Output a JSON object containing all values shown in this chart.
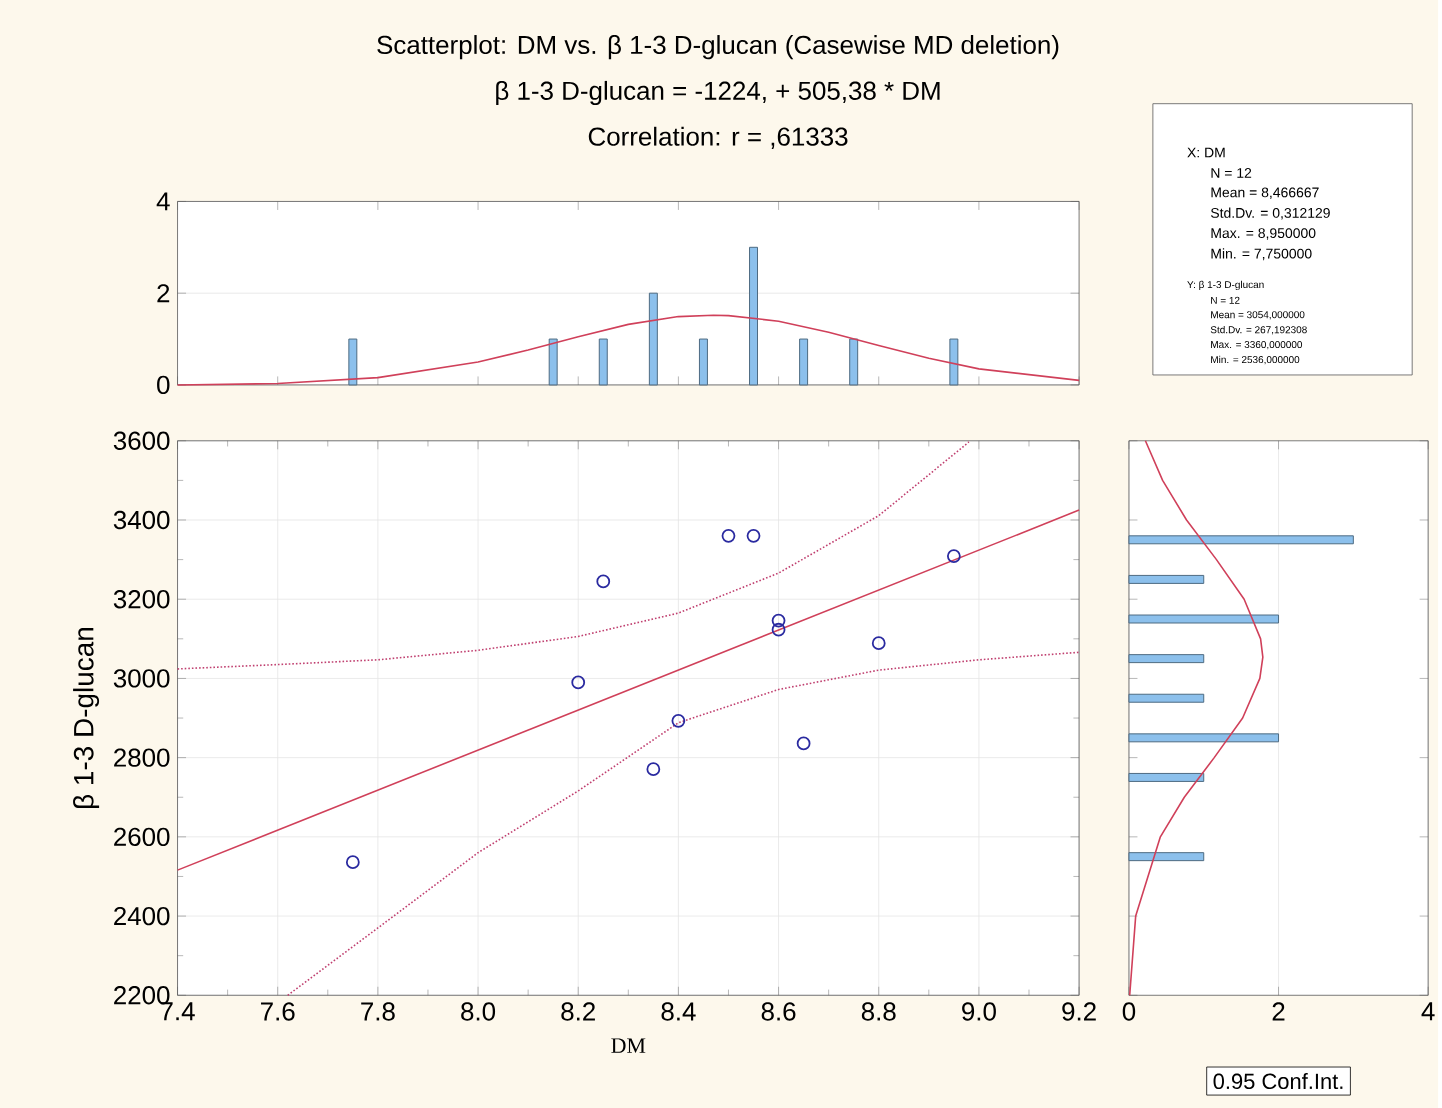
{
  "chart_data": [
    {
      "type": "bar",
      "title": "Scatterplot: DM vs. β 1-3 D-glucan (Casewise MD deletion)",
      "subtitle": "β 1-3 D-glucan = -1224, + 505,38 * DM",
      "annotations": [
        "Correlation: r = ,61333"
      ],
      "x": [
        7.75,
        8.15,
        8.25,
        8.35,
        8.45,
        8.55,
        8.65,
        8.75,
        8.95
      ],
      "series": [
        {
          "type": "bar",
          "color": "#8cc0ec",
          "values": [
            1,
            1,
            1,
            2,
            1,
            3,
            1,
            1,
            1
          ]
        },
        {
          "type": "line",
          "color": "#d0405a",
          "x": [
            7.4,
            7.6,
            7.8,
            8.0,
            8.1,
            8.2,
            8.3,
            8.4,
            8.47,
            8.5,
            8.6,
            8.7,
            8.8,
            8.9,
            9.0,
            9.2
          ],
          "values": [
            0.0,
            0.03,
            0.16,
            0.5,
            0.76,
            1.05,
            1.32,
            1.49,
            1.52,
            1.51,
            1.39,
            1.15,
            0.86,
            0.58,
            0.35,
            0.1
          ]
        }
      ],
      "xlim": [
        7.4,
        9.2
      ],
      "xticks": [
        7.4,
        7.6,
        7.8,
        8,
        8.2,
        8.4,
        8.6,
        8.8,
        9,
        9.2
      ],
      "ylim": [
        0,
        4
      ],
      "yticks": [
        0,
        2,
        4
      ],
      "grid": "y",
      "tick_labels": "y"
    },
    {
      "type": "scatter",
      "xlabel": "DM",
      "ylabel": "β 1-3 D-glucan",
      "grid": true,
      "series": [
        {
          "type": "scatter",
          "marker": "circle",
          "color": "#2a2aa0",
          "x": [
            7.75,
            8.2,
            8.25,
            8.35,
            8.4,
            8.5,
            8.55,
            8.6,
            8.6,
            8.65,
            8.8,
            8.95
          ],
          "values": [
            2536,
            2990,
            3245,
            2771,
            2893,
            3360,
            3360,
            3146,
            3123,
            2836,
            3089,
            3309
          ]
        },
        {
          "type": "line",
          "marker": "none",
          "color": "#d0405a",
          "x": [
            7.4,
            9.2
          ],
          "values": [
            2516,
            3425
          ]
        },
        {
          "type": "line",
          "marker": "none",
          "color": "#c04070",
          "line_style": "dotted",
          "x": [
            7.4,
            7.6,
            7.8,
            8.0,
            8.2,
            8.4,
            8.6,
            8.8,
            8.98
          ],
          "values": [
            3024,
            3035,
            3047,
            3071,
            3106,
            3165,
            3266,
            3411,
            3597
          ]
        },
        {
          "type": "line",
          "marker": "none",
          "color": "#c04070",
          "line_style": "dotted",
          "x": [
            7.62,
            7.8,
            8.0,
            8.2,
            8.4,
            8.6,
            8.8,
            9.0,
            9.2
          ],
          "values": [
            2200,
            2370,
            2560,
            2716,
            2888,
            2972,
            3021,
            3047,
            3066
          ]
        }
      ],
      "xlim": [
        7.4,
        9.2
      ],
      "xticks": [
        7.4,
        7.6,
        7.8,
        {
          "value": 8,
          "label": "8.0"
        },
        8.2,
        8.4,
        8.6,
        8.8,
        {
          "value": 9,
          "label": "9.0"
        },
        9.2
      ],
      "ylim": [
        2200,
        3600
      ],
      "yticks": [
        2200,
        2400,
        2600,
        2800,
        3000,
        3200,
        3400,
        3600
      ]
    },
    {
      "type": "bar",
      "orientation": "horizontal",
      "annotations": [
        "0.95 Conf.Int."
      ],
      "x": [
        3350,
        3250,
        3150,
        3050,
        2950,
        2850,
        2750,
        2550
      ],
      "series": [
        {
          "type": "bar",
          "color": "#8cc0ec",
          "values": [
            3,
            1,
            2,
            1,
            1,
            2,
            1,
            1
          ]
        },
        {
          "type": "line",
          "color": "#d0405a",
          "x": [
            2200,
            2400,
            2600,
            2700,
            2800,
            2900,
            3000,
            3054,
            3100,
            3200,
            3300,
            3400,
            3500,
            3600
          ],
          "values": [
            0.01,
            0.09,
            0.42,
            0.74,
            1.14,
            1.52,
            1.75,
            1.79,
            1.76,
            1.54,
            1.17,
            0.77,
            0.45,
            0.22
          ]
        }
      ],
      "xlim": [
        0,
        4
      ],
      "xticks": [
        0,
        2,
        4
      ],
      "ylim": [
        2200,
        3600
      ],
      "yticks": [
        2200,
        2400,
        2600,
        2800,
        3000,
        3200,
        3400,
        3600
      ],
      "grid": "x",
      "tick_labels": "x"
    },
    {
      "type": "other",
      "annotations": [
        "X: DM",
        "N = 12",
        "Mean = 8,466667",
        "Std.Dv. = 0,312129",
        "Max. = 8,950000",
        "Min. = 7,750000",
        "Y: β 1-3 D-glucan",
        "N = 12",
        "Mean = 3054,000000",
        "Std.Dv. = 267,192308",
        "Max. = 3360,000000",
        "Min. = 2536,000000"
      ]
    }
  ]
}
